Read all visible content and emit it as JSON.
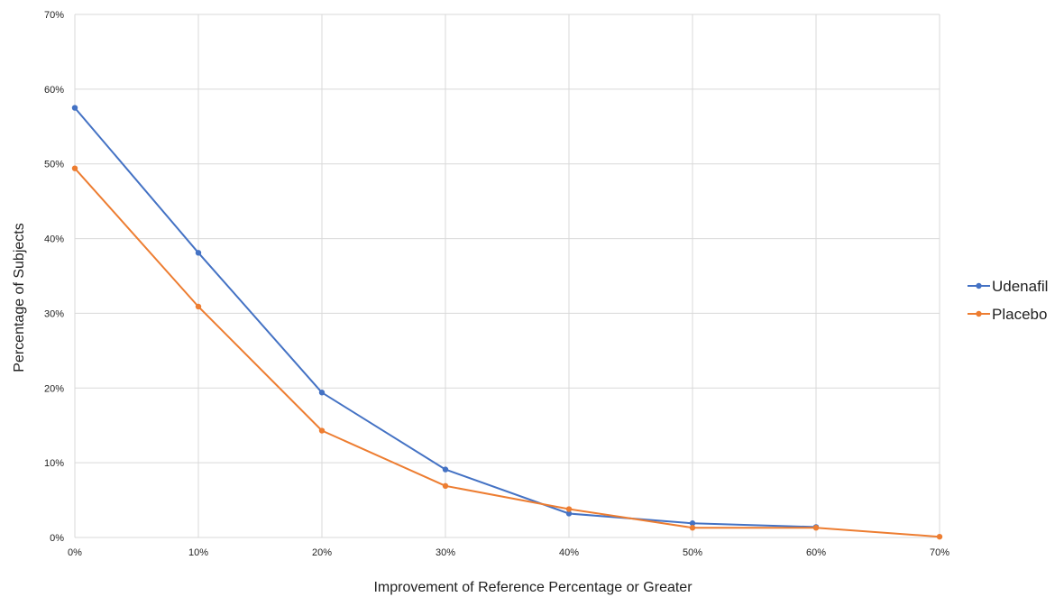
{
  "chart_data": {
    "type": "line",
    "title": "",
    "xlabel": "Improvement of Reference Percentage or Greater",
    "ylabel": "Percentage of Subjects",
    "x": [
      0,
      10,
      20,
      30,
      40,
      50,
      60,
      70
    ],
    "x_tick_labels": [
      "0%",
      "10%",
      "20%",
      "30%",
      "40%",
      "50%",
      "60%",
      "70%"
    ],
    "y_tick_labels": [
      "0%",
      "10%",
      "20%",
      "30%",
      "40%",
      "50%",
      "60%",
      "70%"
    ],
    "xlim": [
      0,
      70
    ],
    "ylim": [
      0,
      70
    ],
    "grid": true,
    "legend_position": "right",
    "series": [
      {
        "name": "Udenafil",
        "color": "#4472C4",
        "x": [
          0,
          10,
          20,
          30,
          40,
          50,
          60
        ],
        "values": [
          57.5,
          38.1,
          19.4,
          9.1,
          3.2,
          1.9,
          1.4
        ]
      },
      {
        "name": "Placebo",
        "color": "#ED7D31",
        "x": [
          0,
          10,
          20,
          30,
          40,
          50,
          60,
          70
        ],
        "values": [
          49.4,
          30.9,
          14.3,
          6.9,
          3.8,
          1.3,
          1.3,
          0.1
        ]
      }
    ]
  }
}
